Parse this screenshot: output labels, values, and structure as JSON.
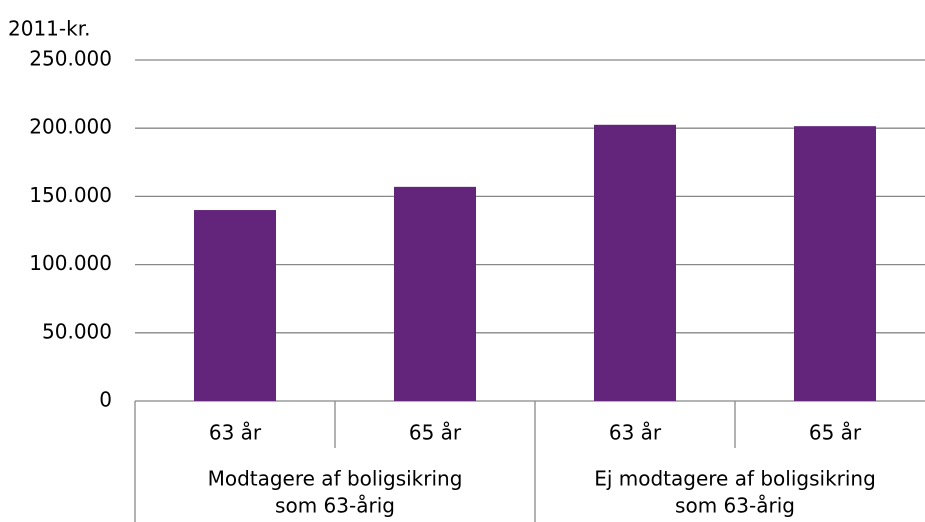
{
  "chart_data": {
    "type": "bar",
    "y_axis_label": "2011-kr.",
    "categories": [
      "63 år",
      "65 år",
      "63 år",
      "65 år"
    ],
    "category_groups": [
      [
        "Modtagere af boligsikring",
        "som 63-årig"
      ],
      [
        "Ej modtagere af boligsikring",
        "som 63-årig"
      ]
    ],
    "values": [
      140000,
      157000,
      202500,
      201500
    ],
    "color": "#63257c",
    "ylim": [
      0,
      250000
    ],
    "yticks": [
      0,
      {
        "value": 50000,
        "label": "50.000"
      },
      {
        "value": 100000,
        "label": "100.000"
      },
      {
        "value": 150000,
        "label": "150.000"
      },
      {
        "value": 200000,
        "label": "200.000"
      },
      {
        "value": 250000,
        "label": "250.000"
      }
    ],
    "grid": true
  }
}
